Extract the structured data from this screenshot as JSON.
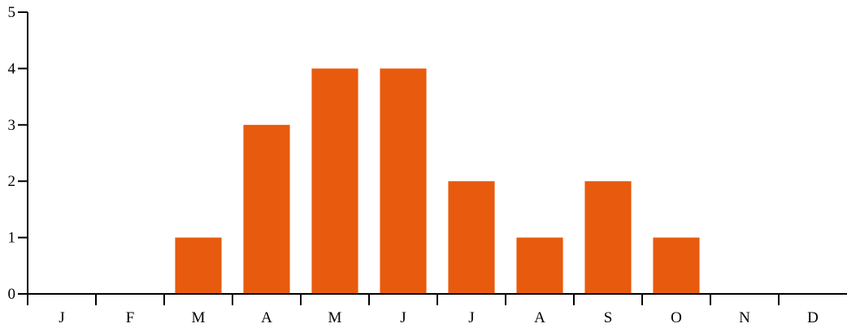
{
  "chart_data": {
    "type": "bar",
    "title": "",
    "xlabel": "",
    "ylabel": "",
    "categories": [
      "J",
      "F",
      "M",
      "A",
      "M",
      "J",
      "J",
      "A",
      "S",
      "O",
      "N",
      "D"
    ],
    "values": [
      0,
      0,
      1,
      3,
      4,
      4,
      2,
      1,
      2,
      1,
      0,
      0
    ],
    "ylim": [
      0,
      5
    ],
    "yticks": [
      0,
      1,
      2,
      3,
      4,
      5
    ],
    "grid": false,
    "legend": "none",
    "bar_color": "#E85A0E"
  }
}
